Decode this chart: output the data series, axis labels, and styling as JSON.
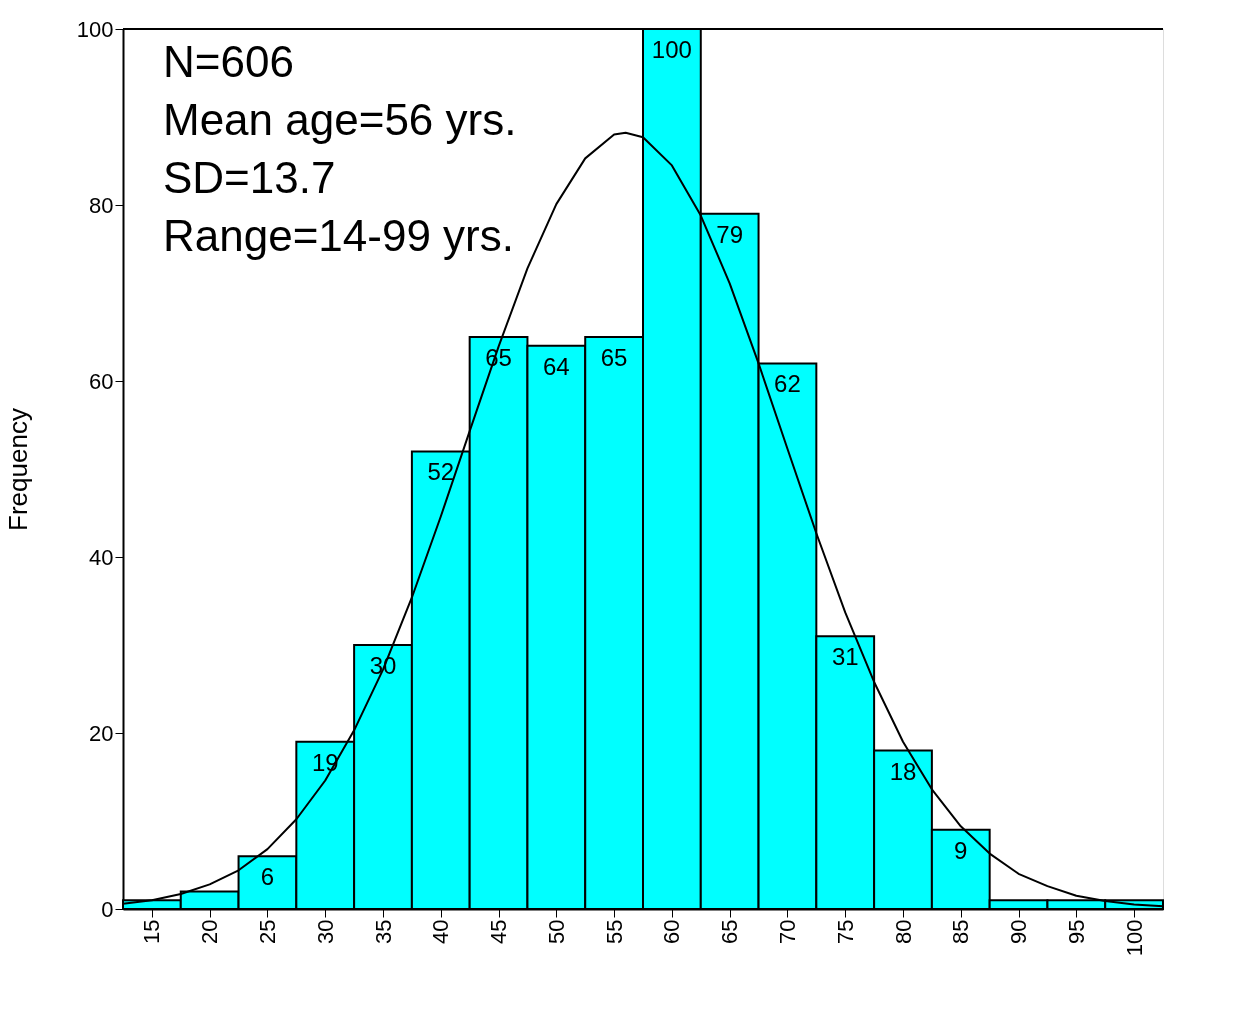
{
  "chart_data": {
    "type": "histogram",
    "bins": [
      12.5,
      17.5,
      22.5,
      27.5,
      32.5,
      37.5,
      42.5,
      47.5,
      52.5,
      57.5,
      62.5,
      67.5,
      72.5,
      77.5,
      82.5,
      87.5,
      92.5,
      97.5,
      102.5
    ],
    "values": [
      1,
      2,
      6,
      19,
      30,
      52,
      65,
      64,
      65,
      100,
      79,
      62,
      31,
      18,
      9,
      1,
      1,
      1
    ],
    "value_labels": [
      null,
      null,
      "6",
      "19",
      "30",
      "52",
      "65",
      "64",
      "65",
      "100",
      "79",
      "62",
      "31",
      "18",
      "9",
      null,
      null,
      null
    ],
    "color": "#00ffff",
    "series": [
      {
        "type": "line",
        "color": "#000000",
        "x": [
          12.5,
          15,
          17.5,
          20,
          22.5,
          25,
          27.5,
          30,
          32.5,
          35,
          37.5,
          40,
          42.5,
          45,
          47.5,
          50,
          52.5,
          55,
          56,
          57.5,
          60,
          62.5,
          65,
          67.5,
          70,
          72.5,
          75,
          77.5,
          80,
          82.5,
          85,
          87.5,
          90,
          92.5,
          95,
          97.5,
          100,
          102.5
        ],
        "values": [
          0.6,
          1.0,
          1.7,
          2.8,
          4.4,
          6.8,
          10.2,
          14.6,
          20.3,
          27.2,
          35.4,
          44.6,
          54.3,
          63.9,
          72.8,
          80.1,
          85.3,
          88.0,
          88.2,
          87.7,
          84.5,
          78.8,
          71.1,
          62.0,
          52.3,
          42.7,
          33.7,
          25.8,
          19.0,
          13.6,
          9.4,
          6.3,
          4.0,
          2.6,
          1.5,
          0.9,
          0.5,
          0.3
        ]
      }
    ],
    "ylabel": "Frequency",
    "xlim": [
      12.5,
      102.5
    ],
    "xticks": [
      15,
      20,
      25,
      30,
      35,
      40,
      45,
      50,
      55,
      60,
      65,
      70,
      75,
      80,
      85,
      90,
      95,
      100
    ],
    "ylim": [
      0,
      100
    ],
    "yticks": [
      0,
      20,
      40,
      60,
      80,
      100
    ],
    "grid": false,
    "marker": "none",
    "line_style": "solid",
    "annotations": [
      "N=606",
      "Mean age=56 yrs.",
      "SD=13.7",
      "Range=14-99 yrs."
    ]
  }
}
